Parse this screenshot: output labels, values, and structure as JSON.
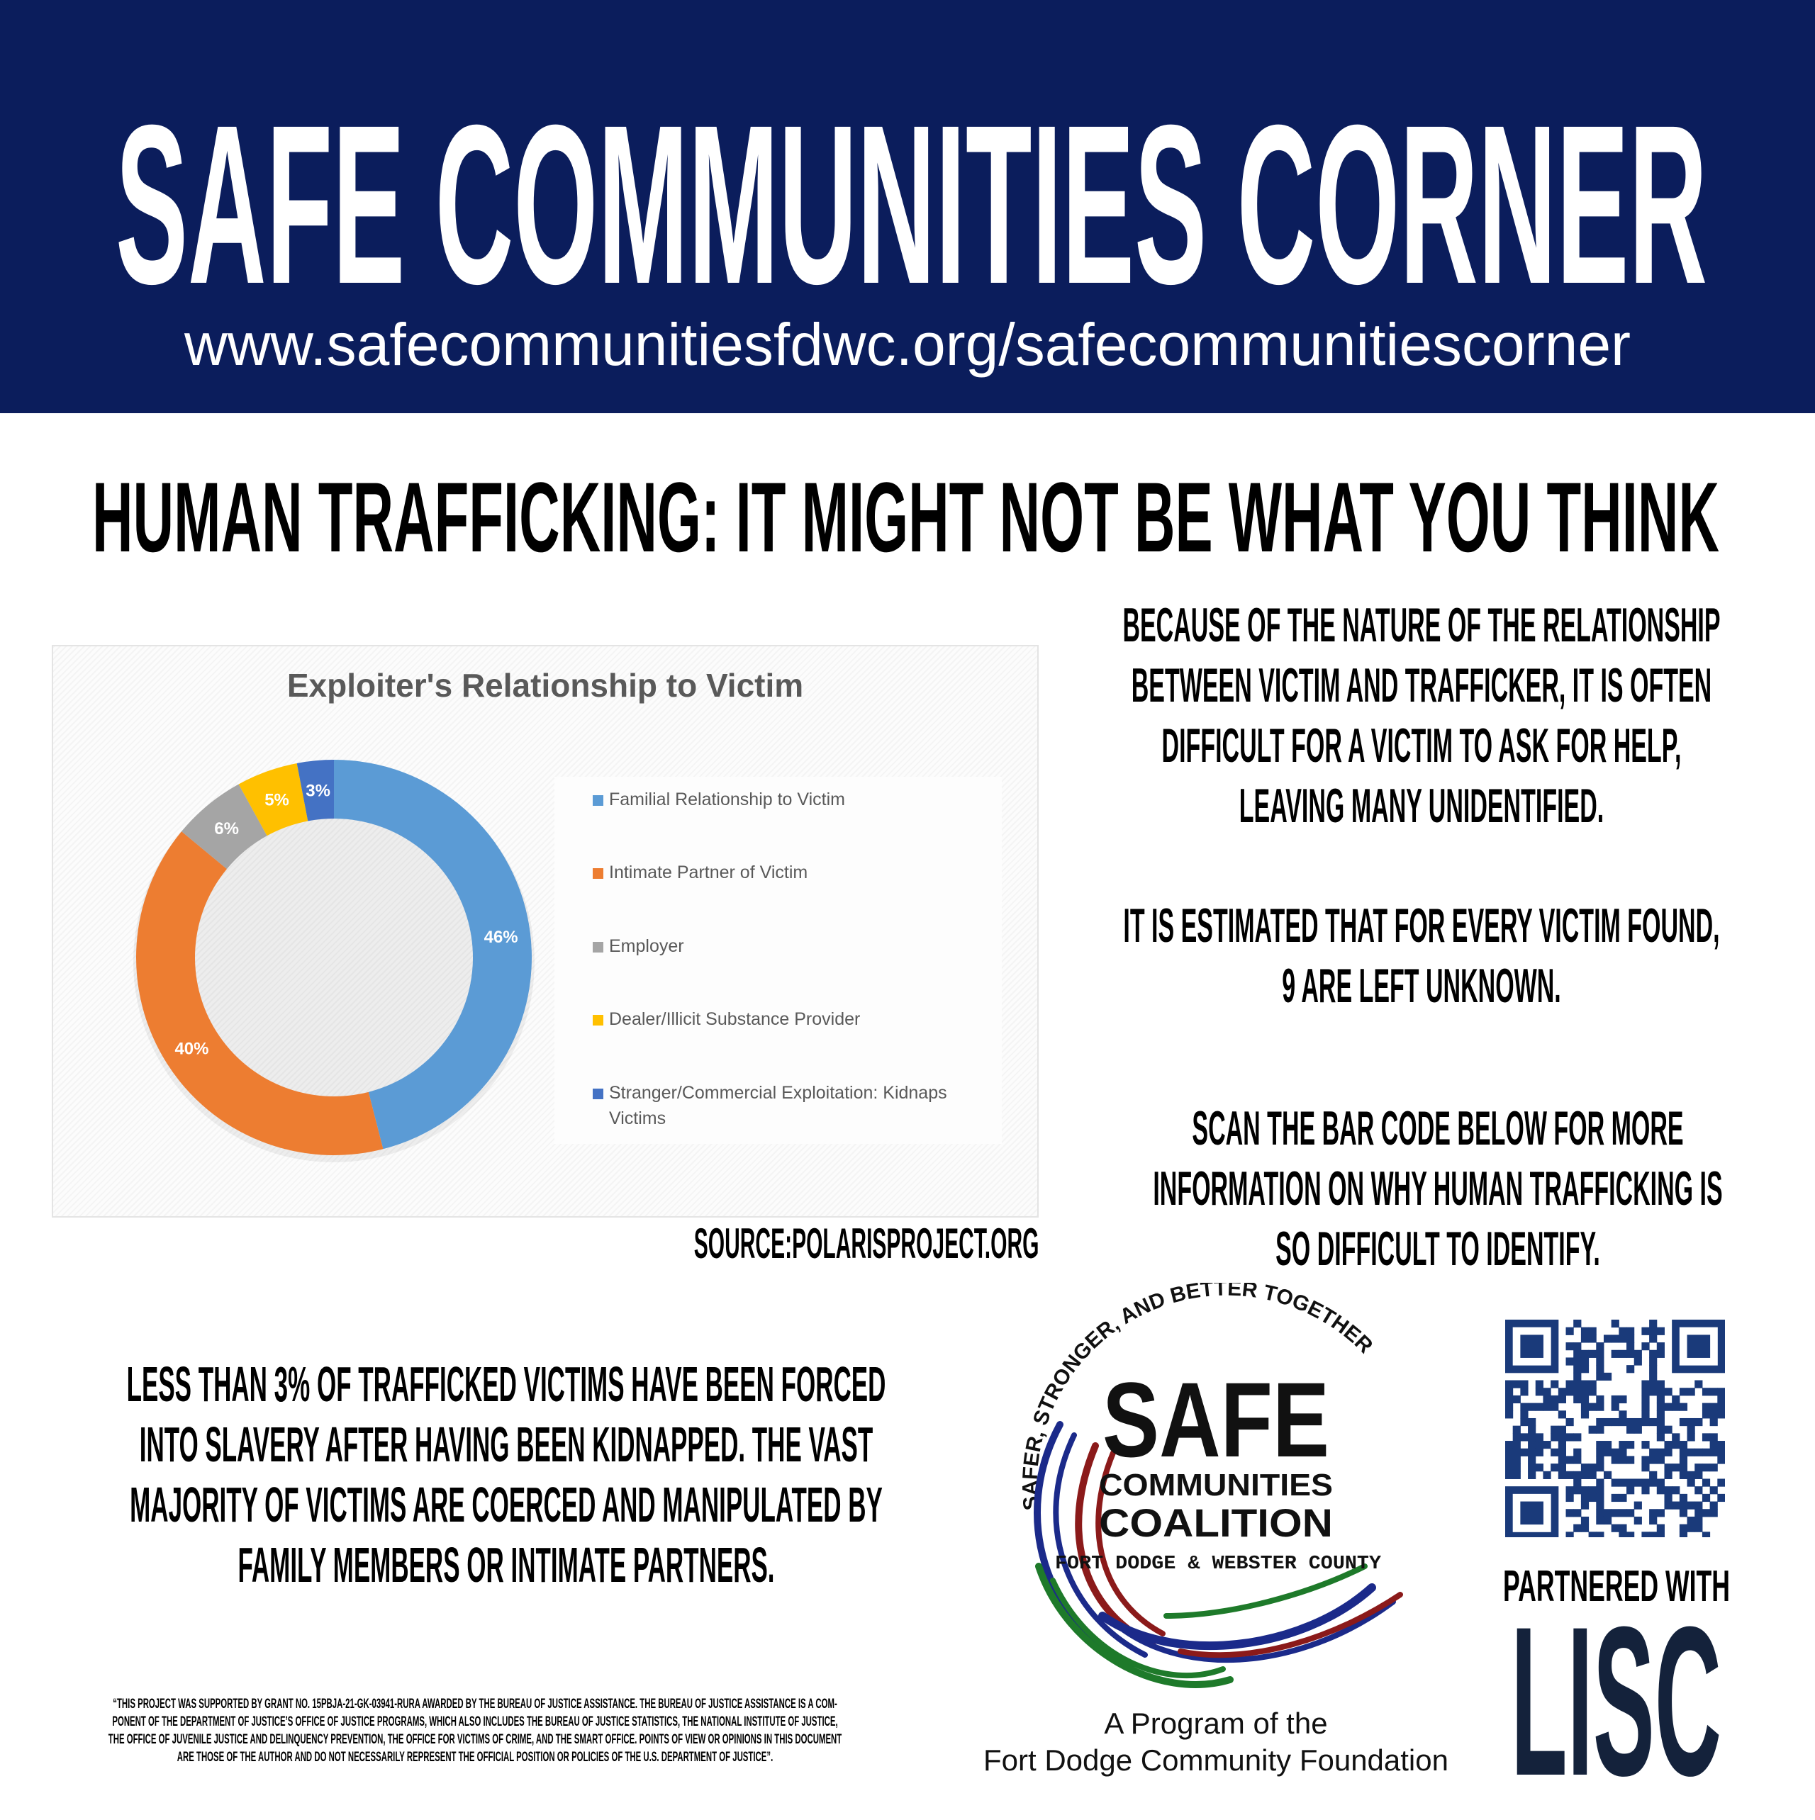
{
  "header": {
    "title": "SAFE COMMUNITIES CORNER",
    "url": "www.safecommunitiesfdwc.org/safecommunitiescorner",
    "background": "#0b1d5c"
  },
  "heading": "HUMAN TRAFFICKING: IT MIGHT NOT BE WHAT YOU THINK",
  "right_text": {
    "p1": [
      "BECAUSE OF THE NATURE OF THE RELATIONSHIP",
      "BETWEEN VICTIM AND TRAFFICKER, IT IS OFTEN",
      "DIFFICULT FOR A VICTIM TO ASK FOR HELP,",
      "LEAVING MANY UNIDENTIFIED."
    ],
    "p2": [
      "IT IS ESTIMATED THAT FOR EVERY VICTIM FOUND,",
      "9 ARE LEFT UNKNOWN."
    ],
    "p3": [
      "SCAN THE BAR CODE  BELOW FOR MORE",
      "INFORMATION ON WHY HUMAN TRAFFICKING IS",
      "SO DIFFICULT TO IDENTIFY."
    ]
  },
  "source": "SOURCE:POLARISPROJECT.ORG",
  "left_text": [
    "LESS THAN 3% OF TRAFFICKED VICTIMS HAVE BEEN FORCED",
    "INTO SLAVERY AFTER HAVING BEEN KIDNAPPED. THE VAST",
    "MAJORITY  OF VICTIMS ARE COERCED AND MANIPULATED BY",
    "FAMILY MEMBERS OR INTIMATE PARTNERS."
  ],
  "fine_print": [
    "“THIS PROJECT WAS SUPPORTED BY GRANT NO. 15PBJA-21-GK-03941-RURA AWARDED BY THE BUREAU OF JUSTICE ASSISTANCE. THE BUREAU OF JUSTICE ASSISTANCE IS A COM-",
    "PONENT OF THE DEPARTMENT OF JUSTICE’S OFFICE OF JUSTICE PROGRAMS, WHICH ALSO INCLUDES THE BUREAU OF JUSTICE STATISTICS, THE NATIONAL INSTITUTE OF JUSTICE,",
    "THE OFFICE OF JUVENILE JUSTICE AND DELINQUENCY PREVENTION, THE OFFICE FOR VICTIMS OF CRIME, AND THE SMART OFFICE. POINTS OF VIEW OR OPINIONS IN THIS DOCUMENT",
    "ARE THOSE OF THE AUTHOR AND DO NOT NECESSARILY REPRESENT THE OFFICIAL POSITION OR POLICIES OF THE U.S. DEPARTMENT OF JUSTICE”."
  ],
  "logo": {
    "arc_text": "SAFER, STRONGER, AND BETTER TOGETHER",
    "line1": "SAFE",
    "line2": "COMMUNITIES",
    "line3": "COALITION",
    "line4": "FORT DODGE & WEBSTER COUNTY"
  },
  "program": [
    "A Program of the",
    "Fort Dodge Community Foundation"
  ],
  "partnered": "PARTNERED WITH",
  "partner_logo": "LISC",
  "chart_data": {
    "type": "pie",
    "donut": true,
    "title": "Exploiter's Relationship to Victim",
    "categories": [
      "Familial Relationship to Victim",
      "Intimate Partner of Victim",
      "Employer",
      "Dealer/Illicit Substance Provider",
      "Stranger/Commercial Exploitation: Kidnaps Victims"
    ],
    "values": [
      46,
      40,
      6,
      5,
      3
    ],
    "labels": [
      "46%",
      "40%",
      "6%",
      "5%",
      "3%"
    ],
    "colors": [
      "#5b9bd5",
      "#ed7d31",
      "#a5a5a5",
      "#ffc000",
      "#4472c4"
    ],
    "legend": "right"
  }
}
